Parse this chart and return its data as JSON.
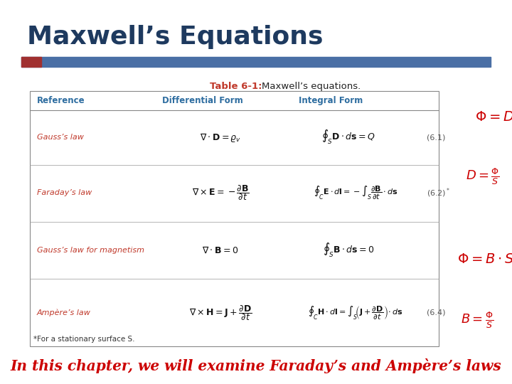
{
  "title": "Maxwell’s Equations",
  "title_color": "#1e3a5f",
  "title_fontsize": 26,
  "bg_color": "#ffffff",
  "bar_color": "#4a6fa5",
  "bar_red_color": "#a03030",
  "table_title_red": "#c0392b",
  "col_header_color": "#2e6da0",
  "row_ref_color": "#c0392b",
  "bottom_text_color": "#cc0000",
  "hw_color": "#cc0000",
  "footnote_text": "*For a stationary surface S.",
  "bottom_text": "In this chapter, we will examine Faraday’s and Ampère’s laws"
}
